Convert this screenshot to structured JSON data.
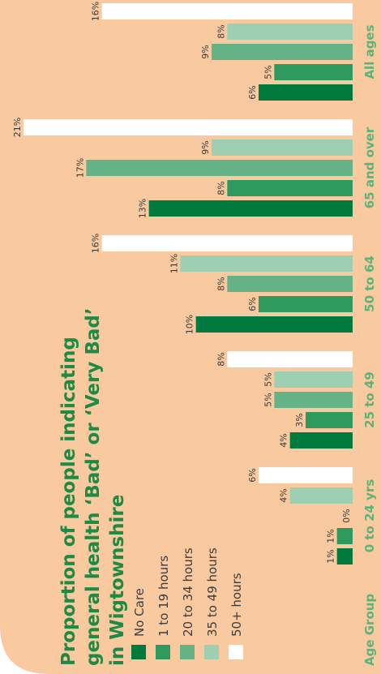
{
  "chart_data": {
    "type": "bar",
    "title": [
      "Proportion of people indicating",
      "general health ‘Bad’ or ‘Very Bad’",
      "in Wigtownshire"
    ],
    "x_label": "Age Group",
    "categories": [
      "0 to 24 yrs",
      "25 to 49",
      "50 to 64",
      "65 and over",
      "All ages"
    ],
    "series": [
      {
        "name": "No Care",
        "color": "#007a3d",
        "values": [
          1,
          4,
          10,
          13,
          6
        ],
        "value_labels": [
          "1%",
          "4%",
          "10%",
          "13%",
          "6%"
        ]
      },
      {
        "name": "1 to 19 hours",
        "color": "#2f9a5e",
        "values": [
          1,
          3,
          6,
          8,
          5
        ],
        "value_labels": [
          "1%",
          "3%",
          "6%",
          "8%",
          "5%"
        ]
      },
      {
        "name": "20 to 34 hours",
        "color": "#66b287",
        "values": [
          0,
          5,
          8,
          17,
          9
        ],
        "value_labels": [
          "0%",
          "5%",
          "8%",
          "17%",
          "9%"
        ]
      },
      {
        "name": "35 to 49 hours",
        "color": "#9fcfb2",
        "values": [
          4,
          5,
          11,
          9,
          8
        ],
        "value_labels": [
          "4%",
          "5%",
          "11%",
          "9%",
          "8%"
        ]
      },
      {
        "name": "50+ hours",
        "color": "#ffffff",
        "values": [
          6,
          8,
          16,
          21,
          16
        ],
        "value_labels": [
          "6%",
          "8%",
          "16%",
          "21%",
          "16%"
        ]
      }
    ],
    "ylim": [
      0,
      22.5
    ]
  }
}
